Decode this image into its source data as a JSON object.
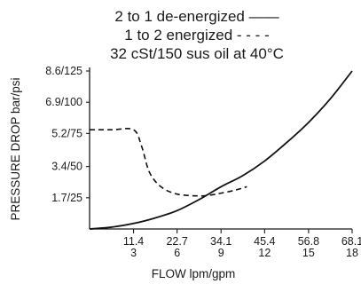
{
  "chart_data": {
    "type": "line",
    "title_lines": [
      "2 to 1 de-energized ——",
      "1 to 2 energized - - - -",
      "32 cSt/150 sus oil at 40°C"
    ],
    "xlabel": "FLOW lpm/gpm",
    "ylabel": "PRESSURE DROP bar/psi",
    "xlim": [
      0,
      68.1
    ],
    "ylim": [
      0,
      8.6
    ],
    "x_ticks": [
      {
        "value": 11.4,
        "line1": "11.4",
        "line2": "3"
      },
      {
        "value": 22.7,
        "line1": "22.7",
        "line2": "6"
      },
      {
        "value": 34.1,
        "line1": "34.1",
        "line2": "9"
      },
      {
        "value": 45.4,
        "line1": "45.4",
        "line2": "12"
      },
      {
        "value": 56.8,
        "line1": "56.8",
        "line2": "15"
      },
      {
        "value": 68.1,
        "line1": "68.1",
        "line2": "18"
      }
    ],
    "y_ticks": [
      {
        "value": 1.7,
        "label": "1.7/25"
      },
      {
        "value": 3.4,
        "label": "3.4/50"
      },
      {
        "value": 5.2,
        "label": "5.2/75"
      },
      {
        "value": 6.9,
        "label": "6.9/100"
      },
      {
        "value": 8.6,
        "label": "8.6/125"
      }
    ],
    "grid": false,
    "series": [
      {
        "style": "solid",
        "x": [
          0,
          5.7,
          11.4,
          17,
          22.7,
          28.4,
          34.1,
          39.7,
          45.4,
          51.1,
          56.8,
          62.5,
          68.1
        ],
        "y": [
          0,
          0.1,
          0.3,
          0.6,
          1.0,
          1.6,
          2.3,
          2.9,
          3.7,
          4.7,
          5.8,
          7.1,
          8.6
        ]
      },
      {
        "style": "dashed",
        "x": [
          0,
          5.7,
          11.4,
          13.5,
          15.5,
          18.5,
          22.7,
          28.4,
          31.5,
          34.1,
          37.5,
          40.8
        ],
        "y": [
          5.4,
          5.4,
          5.4,
          4.5,
          3.1,
          2.3,
          1.9,
          1.8,
          1.85,
          1.95,
          2.1,
          2.3
        ]
      }
    ]
  }
}
